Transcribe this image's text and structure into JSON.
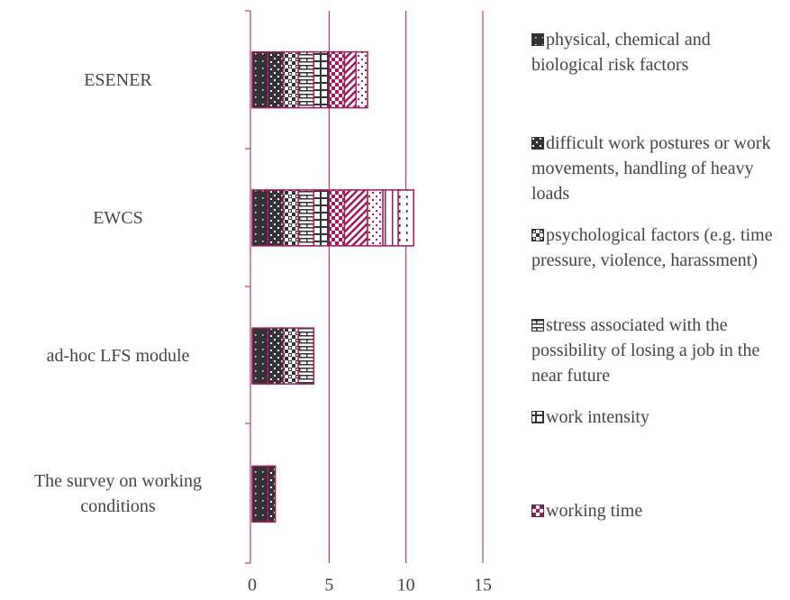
{
  "chart_data": {
    "type": "stacked_barh",
    "categories": [
      "ESENER",
      "EWCS",
      "ad-hoc LFS module",
      "The survey on working conditions"
    ],
    "series": [
      {
        "name": "physical, chemical and biological risk factors",
        "color": "#333333",
        "values": [
          1,
          1,
          1,
          1
        ]
      },
      {
        "name": "difficult work postures or work movements, handling of heavy loads",
        "color": "#333333",
        "values": [
          1,
          1,
          1,
          0.5
        ]
      },
      {
        "name": "psychological factors (e.g. time pressure, violence, harassment)",
        "color": "#333333",
        "values": [
          1,
          1,
          1,
          0
        ]
      },
      {
        "name": "stress associated with the possibility of losing a job in the near future",
        "color": "#333333",
        "values": [
          1,
          1,
          1,
          0
        ]
      },
      {
        "name": "work intensity",
        "color": "#333333",
        "values": [
          1,
          1,
          0,
          0
        ]
      },
      {
        "name": "working time",
        "color": "#a3195b",
        "values": [
          1,
          1,
          0,
          0
        ]
      },
      {
        "color": "#a3195b",
        "values": [
          0.75,
          1.5,
          0,
          0
        ]
      },
      {
        "color": "#a3195b",
        "values": [
          0.75,
          1,
          0,
          0
        ]
      },
      {
        "color": "#a3195b",
        "values": [
          0,
          1,
          0,
          0
        ]
      },
      {
        "color": "#333333",
        "values": [
          0,
          1,
          0,
          0
        ]
      }
    ],
    "xlim": [
      0,
      15
    ],
    "xticks": [
      0,
      5,
      10,
      15
    ],
    "grid": true,
    "legend": "right"
  }
}
